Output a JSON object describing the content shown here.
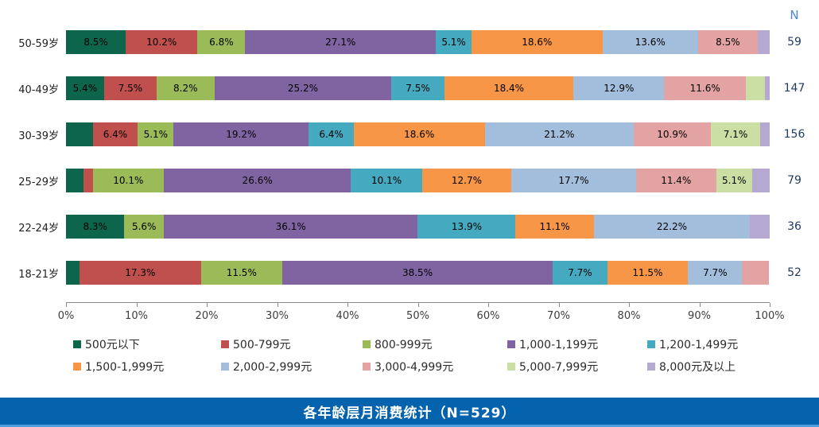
{
  "n_header": "N",
  "title_banner": {
    "text": "各年龄层月消费统计（N=529）",
    "background": "#0563ad",
    "accent_line": "#4aa0dc",
    "text_color": "#ffffff"
  },
  "chart_data": {
    "type": "bar",
    "subtype": "horizontal-stacked-percent",
    "title": "各年龄层月消费统计（N=529）",
    "xlabel": "",
    "ylabel": "",
    "xlim": [
      0,
      100
    ],
    "grid": false,
    "legend_position": "bottom",
    "label_min_percent": 5,
    "categories": [
      "50-59岁",
      "40-49岁",
      "30-39岁",
      "25-29岁",
      "22-24岁",
      "18-21岁"
    ],
    "n_values": [
      59,
      147,
      156,
      79,
      36,
      52
    ],
    "x_ticks": [
      "0%",
      "10%",
      "20%",
      "30%",
      "40%",
      "50%",
      "60%",
      "70%",
      "80%",
      "90%",
      "100%"
    ],
    "series": [
      {
        "name": "500元以下",
        "color": "#0d654c",
        "values": [
          8.5,
          5.4,
          3.8,
          2.5,
          8.3,
          1.9
        ]
      },
      {
        "name": "500-799元",
        "color": "#c0504d",
        "values": [
          10.2,
          7.5,
          6.4,
          1.3,
          0,
          17.3
        ]
      },
      {
        "name": "800-999元",
        "color": "#9bbb59",
        "values": [
          6.8,
          8.2,
          5.1,
          10.1,
          5.6,
          11.5
        ]
      },
      {
        "name": "1,000-1,199元",
        "color": "#8064a2",
        "values": [
          27.1,
          25.2,
          19.2,
          26.6,
          36.1,
          38.5
        ]
      },
      {
        "name": "1,200-1,499元",
        "color": "#45a9bf",
        "values": [
          5.1,
          7.5,
          6.4,
          10.1,
          13.9,
          7.7
        ]
      },
      {
        "name": "1,500-1,999元",
        "color": "#f79646",
        "values": [
          18.6,
          18.4,
          18.6,
          12.7,
          11.1,
          11.5
        ]
      },
      {
        "name": "2,000-2,999元",
        "color": "#a3bedd",
        "values": [
          13.6,
          12.9,
          21.2,
          17.7,
          22.2,
          7.7
        ]
      },
      {
        "name": "3,000-4,999元",
        "color": "#e3a3a2",
        "values": [
          8.5,
          11.6,
          10.9,
          11.4,
          0,
          3.8
        ]
      },
      {
        "name": "5,000-7,999元",
        "color": "#cbdfa4",
        "values": [
          0,
          2.7,
          7.1,
          5.1,
          0,
          0
        ]
      },
      {
        "name": "8,000元及以上",
        "color": "#b5a8d1",
        "values": [
          1.7,
          0.7,
          1.3,
          2.5,
          2.8,
          0
        ]
      }
    ]
  }
}
